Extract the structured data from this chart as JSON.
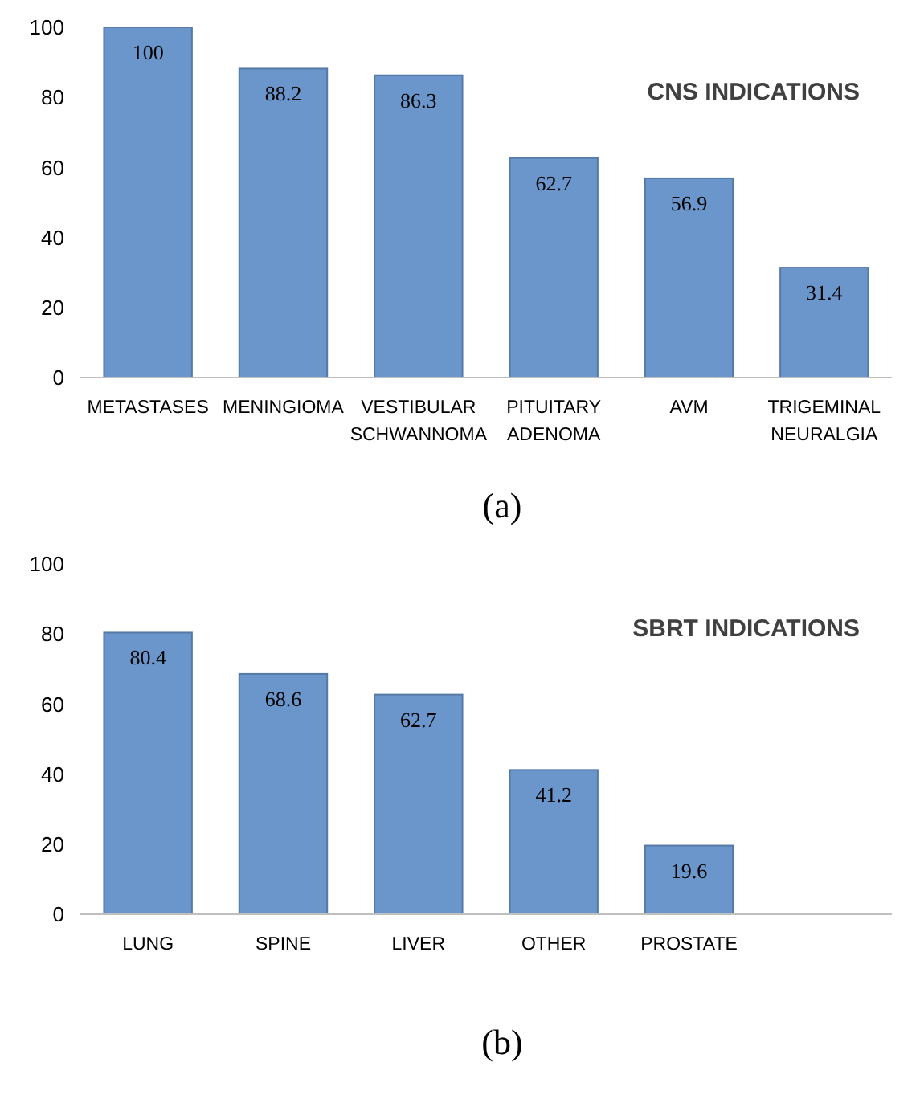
{
  "chart_data": [
    {
      "type": "bar",
      "title": "CNS INDICATIONS",
      "xlabel": "(a)",
      "categories": [
        "METASTASES",
        "MENINGIOMA",
        "VESTIBULAR SCHWANNOMA",
        "PITUITARY ADENOMA",
        "AVM",
        "TRIGEMINAL NEURALGIA"
      ],
      "values": [
        100,
        88.2,
        86.3,
        62.7,
        56.9,
        31.4
      ],
      "color": "#6a96cc",
      "ylim": [
        0,
        100
      ],
      "yticks": [
        0,
        20,
        40,
        60,
        80,
        100
      ],
      "grid": false,
      "data_labels": true
    },
    {
      "type": "bar",
      "title": "SBRT INDICATIONS",
      "xlabel": "(b)",
      "categories": [
        "LUNG",
        "SPINE",
        "LIVER",
        "OTHER",
        "PROSTATE",
        null
      ],
      "values": [
        80.4,
        68.6,
        62.7,
        41.2,
        19.6,
        null
      ],
      "color": "#6a96cc",
      "ylim": [
        0,
        100
      ],
      "yticks": [
        0,
        20,
        40,
        60,
        80,
        100
      ],
      "grid": false,
      "data_labels": true
    }
  ]
}
